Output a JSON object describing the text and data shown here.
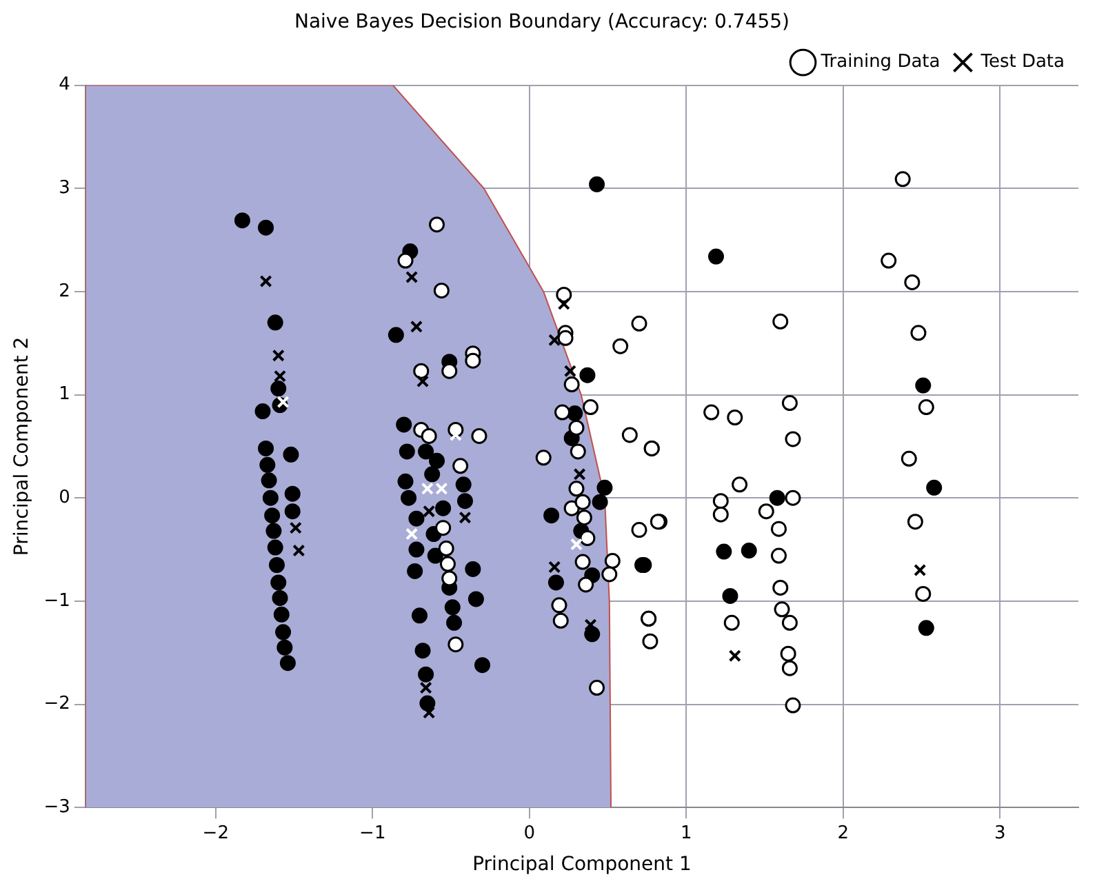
{
  "chart_data": {
    "type": "scatter",
    "title": "Naive Bayes Decision Boundary (Accuracy: 0.7455)",
    "xlabel": "Principal Component 1",
    "ylabel": "Principal Component 2",
    "xlim": [
      -2.83,
      3.5
    ],
    "xticks": [
      {
        "value": -2,
        "label": "−2"
      },
      {
        "value": -1,
        "label": "−1"
      },
      0,
      1,
      2,
      3
    ],
    "ylim": [
      -3,
      4
    ],
    "yticks": [
      {
        "value": -3,
        "label": "−3"
      },
      {
        "value": -2,
        "label": "−2"
      },
      {
        "value": -1,
        "label": "−1"
      },
      0,
      1,
      2,
      3,
      4
    ],
    "grid": true,
    "legend": "top right",
    "series": [
      {
        "type": "area",
        "color": "#a9acd6",
        "x": [
          -2.83,
          -2.83,
          -0.87,
          -0.29,
          0.09,
          0.33,
          0.48,
          0.51,
          0.52
        ],
        "values": [
          -3,
          4,
          4,
          3,
          2,
          1,
          0,
          -1,
          -3
        ]
      },
      {
        "name": "Training Data",
        "marker": "circle",
        "color": "#ffffff",
        "x": [
          2.38,
          2.29,
          2.44,
          2.48,
          2.42,
          2.46,
          2.51,
          2.53,
          1.6,
          1.66,
          1.68,
          1.68,
          1.16,
          1.31,
          1.34,
          1.22,
          1.22,
          1.51,
          1.59,
          1.59,
          1.6,
          1.61,
          1.66,
          1.65,
          1.66,
          1.68,
          1.29,
          0.78,
          0.83,
          0.76,
          0.77,
          0.7,
          0.58,
          0.64,
          0.78,
          0.7,
          0.82,
          0.53,
          0.51,
          0.76,
          0.39,
          0.22,
          0.23,
          0.23,
          0.27,
          0.21,
          0.3,
          0.31,
          0.09,
          0.3,
          0.27,
          0.34,
          0.35,
          0.37,
          0.34,
          0.36,
          0.19,
          0.2,
          0.43,
          -0.59,
          -0.56,
          -0.79,
          -0.36,
          -0.36,
          -0.51,
          -0.69,
          -0.69,
          -0.64,
          -0.47,
          -0.32,
          -0.44,
          -0.55,
          -0.53,
          -0.52,
          -0.51,
          -0.47
        ],
        "values": [
          3.09,
          2.3,
          2.09,
          1.6,
          0.38,
          -0.23,
          -0.93,
          0.88,
          1.71,
          0.92,
          0.57,
          0,
          0.83,
          0.78,
          0.13,
          -0.03,
          -0.16,
          -0.13,
          -0.3,
          -0.56,
          -0.87,
          -1.08,
          -1.21,
          -1.51,
          -1.65,
          -2.01,
          -1.21,
          0.48,
          -0.23,
          -1.17,
          -1.39,
          1.69,
          1.47,
          0.61,
          0.48,
          -0.31,
          -0.23,
          -0.61,
          -0.74,
          -1.17,
          0.88,
          1.97,
          1.6,
          1.55,
          1.1,
          0.83,
          0.68,
          0.45,
          0.39,
          0.09,
          -0.1,
          -0.04,
          -0.19,
          -0.39,
          -0.62,
          -0.84,
          -1.04,
          -1.19,
          -1.84,
          2.65,
          2.01,
          2.3,
          1.4,
          1.33,
          1.23,
          1.23,
          0.66,
          0.6,
          0.66,
          0.6,
          0.31,
          -0.29,
          -0.49,
          -0.64,
          -0.78,
          -1.42
        ]
      },
      {
        "marker": "circle",
        "color": "#000000",
        "x": [
          -1.83,
          -1.68,
          -1.62,
          -1.7,
          -1.68,
          -1.67,
          -1.66,
          -1.65,
          -1.64,
          -1.63,
          -1.62,
          -1.61,
          -1.6,
          -1.59,
          -1.58,
          -1.57,
          -1.56,
          -1.54,
          -1.52,
          -1.51,
          -1.51,
          -1.6,
          -1.59,
          -0.76,
          -0.85,
          -0.51,
          -0.8,
          -0.78,
          -0.66,
          -0.59,
          -0.62,
          -0.79,
          -0.77,
          -0.72,
          -0.72,
          -0.61,
          -0.6,
          -0.73,
          -0.55,
          -0.42,
          -0.41,
          -0.36,
          -0.34,
          -0.51,
          -0.49,
          -0.48,
          -0.7,
          -0.68,
          -0.66,
          -0.65,
          -0.3,
          0.37,
          0.29,
          0.27,
          0.48,
          0.45,
          0.33,
          0.14,
          0.4,
          0.17,
          0.4,
          0.43,
          0.72,
          0.73,
          1.19,
          1.58,
          1.24,
          1.4,
          1.28,
          2.51,
          2.58,
          2.53
        ],
        "values": [
          2.69,
          2.62,
          1.7,
          0.84,
          0.48,
          0.32,
          0.17,
          0,
          -0.17,
          -0.32,
          -0.48,
          -0.65,
          -0.82,
          -0.97,
          -1.13,
          -1.3,
          -1.45,
          -1.6,
          0.42,
          0.04,
          -0.13,
          1.06,
          0.9,
          2.39,
          1.58,
          1.32,
          0.71,
          0.45,
          0.45,
          0.36,
          0.23,
          0.16,
          0,
          -0.2,
          -0.5,
          -0.35,
          -0.56,
          -0.71,
          -0.1,
          0.13,
          -0.03,
          -0.69,
          -0.98,
          -0.87,
          -1.06,
          -1.21,
          -1.14,
          -1.48,
          -1.71,
          -1.99,
          -1.62,
          1.19,
          0.82,
          0.58,
          0.1,
          -0.04,
          -0.32,
          -0.17,
          -0.75,
          -0.82,
          -1.32,
          3.04,
          -0.65,
          -0.65,
          2.34,
          0,
          -0.52,
          -0.51,
          -0.95,
          1.09,
          0.1,
          -1.26
        ]
      },
      {
        "marker": "cross",
        "color": "#ffffff",
        "x": [
          -1.57,
          -0.65,
          -0.56,
          -0.75,
          -0.47,
          0.3
        ],
        "values": [
          0.93,
          0.09,
          0.09,
          -0.35,
          0.61,
          -0.45
        ]
      },
      {
        "name": "Test Data",
        "marker": "cross",
        "color": "#000000",
        "x": [
          -0.75,
          -0.72,
          -0.68,
          -1.6,
          -1.59,
          -1.49,
          -1.47,
          -0.64,
          -0.41,
          -0.66,
          -0.64,
          0.22,
          0.16,
          0.26,
          0.32,
          0.16,
          0.39,
          1.31,
          -1.68,
          2.49
        ],
        "values": [
          2.14,
          1.66,
          1.13,
          1.38,
          1.18,
          -0.29,
          -0.51,
          -0.13,
          -0.19,
          -1.84,
          -2.08,
          1.88,
          1.53,
          1.23,
          0.23,
          -0.67,
          -1.23,
          -1.53,
          2.1,
          -0.7
        ]
      }
    ]
  }
}
